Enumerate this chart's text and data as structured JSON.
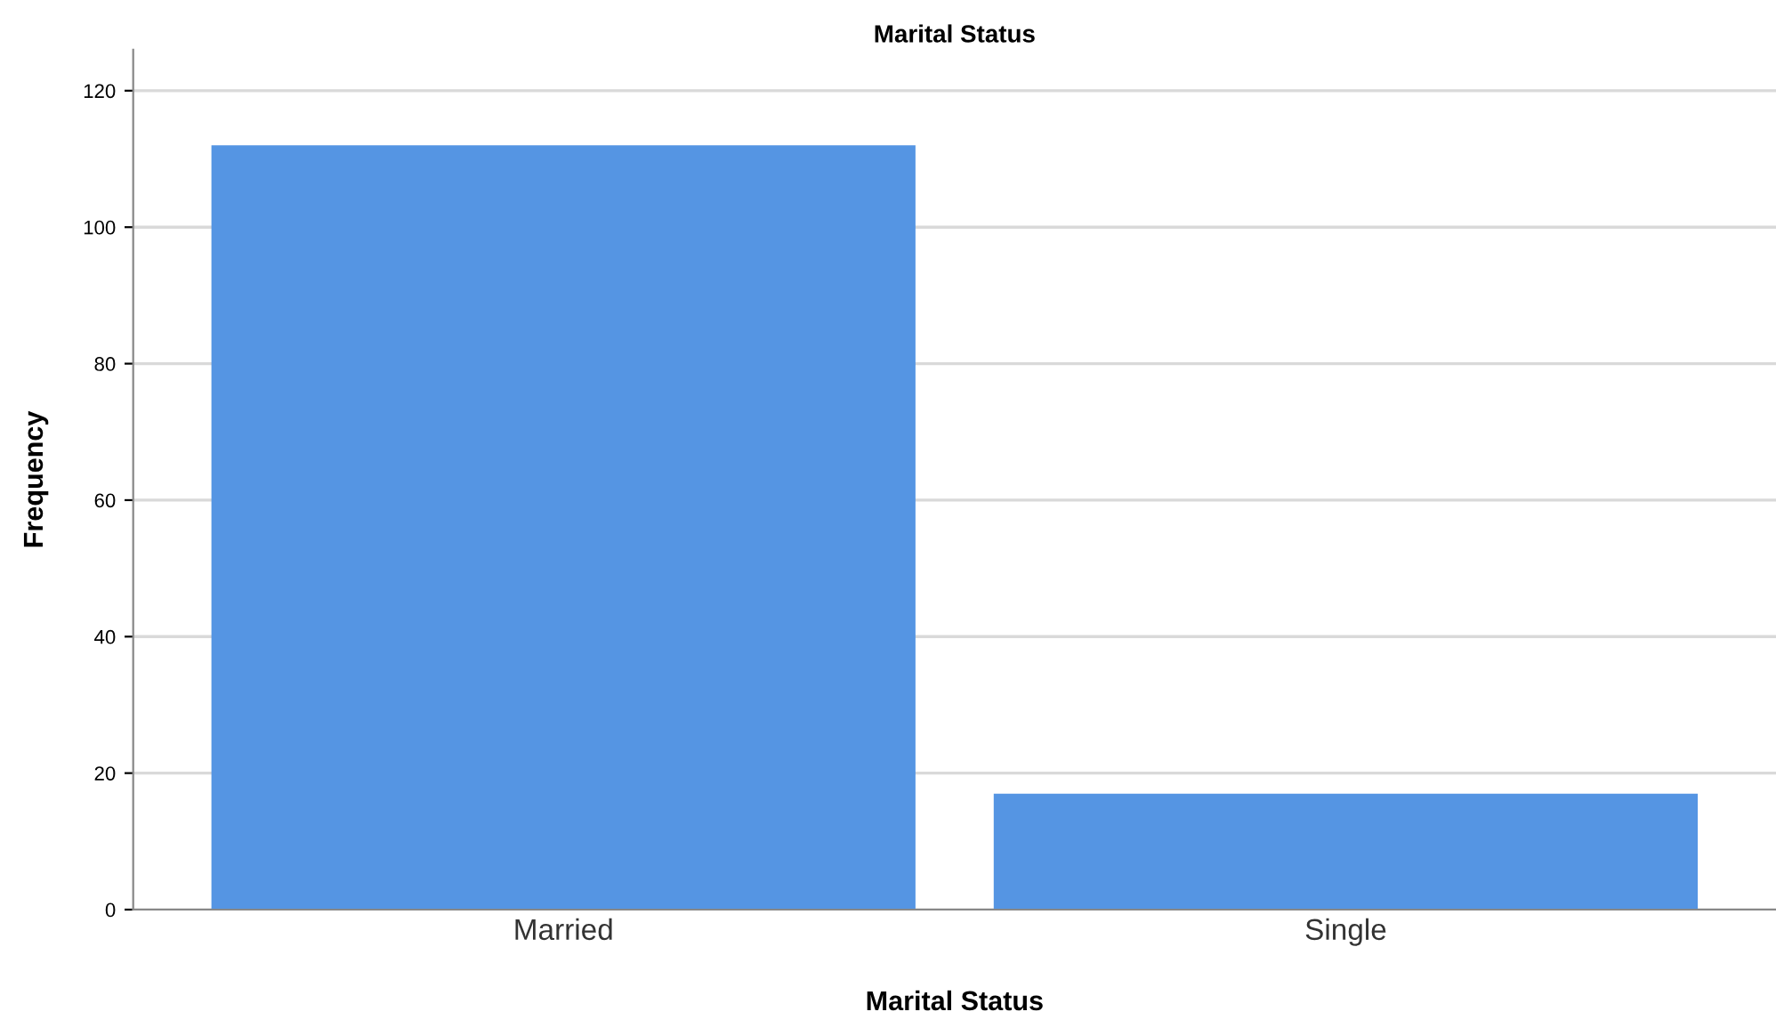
{
  "chart_data": {
    "type": "bar",
    "title": "Marital Status",
    "xlabel": "Marital Status",
    "ylabel": "Frequency",
    "categories": [
      "Married",
      "Single"
    ],
    "values": [
      112,
      17
    ],
    "color": "#5595e3",
    "ylim": [
      0,
      126
    ],
    "yticks": [
      0,
      20,
      40,
      60,
      80,
      100,
      120
    ],
    "grid": "y",
    "legend": false
  }
}
